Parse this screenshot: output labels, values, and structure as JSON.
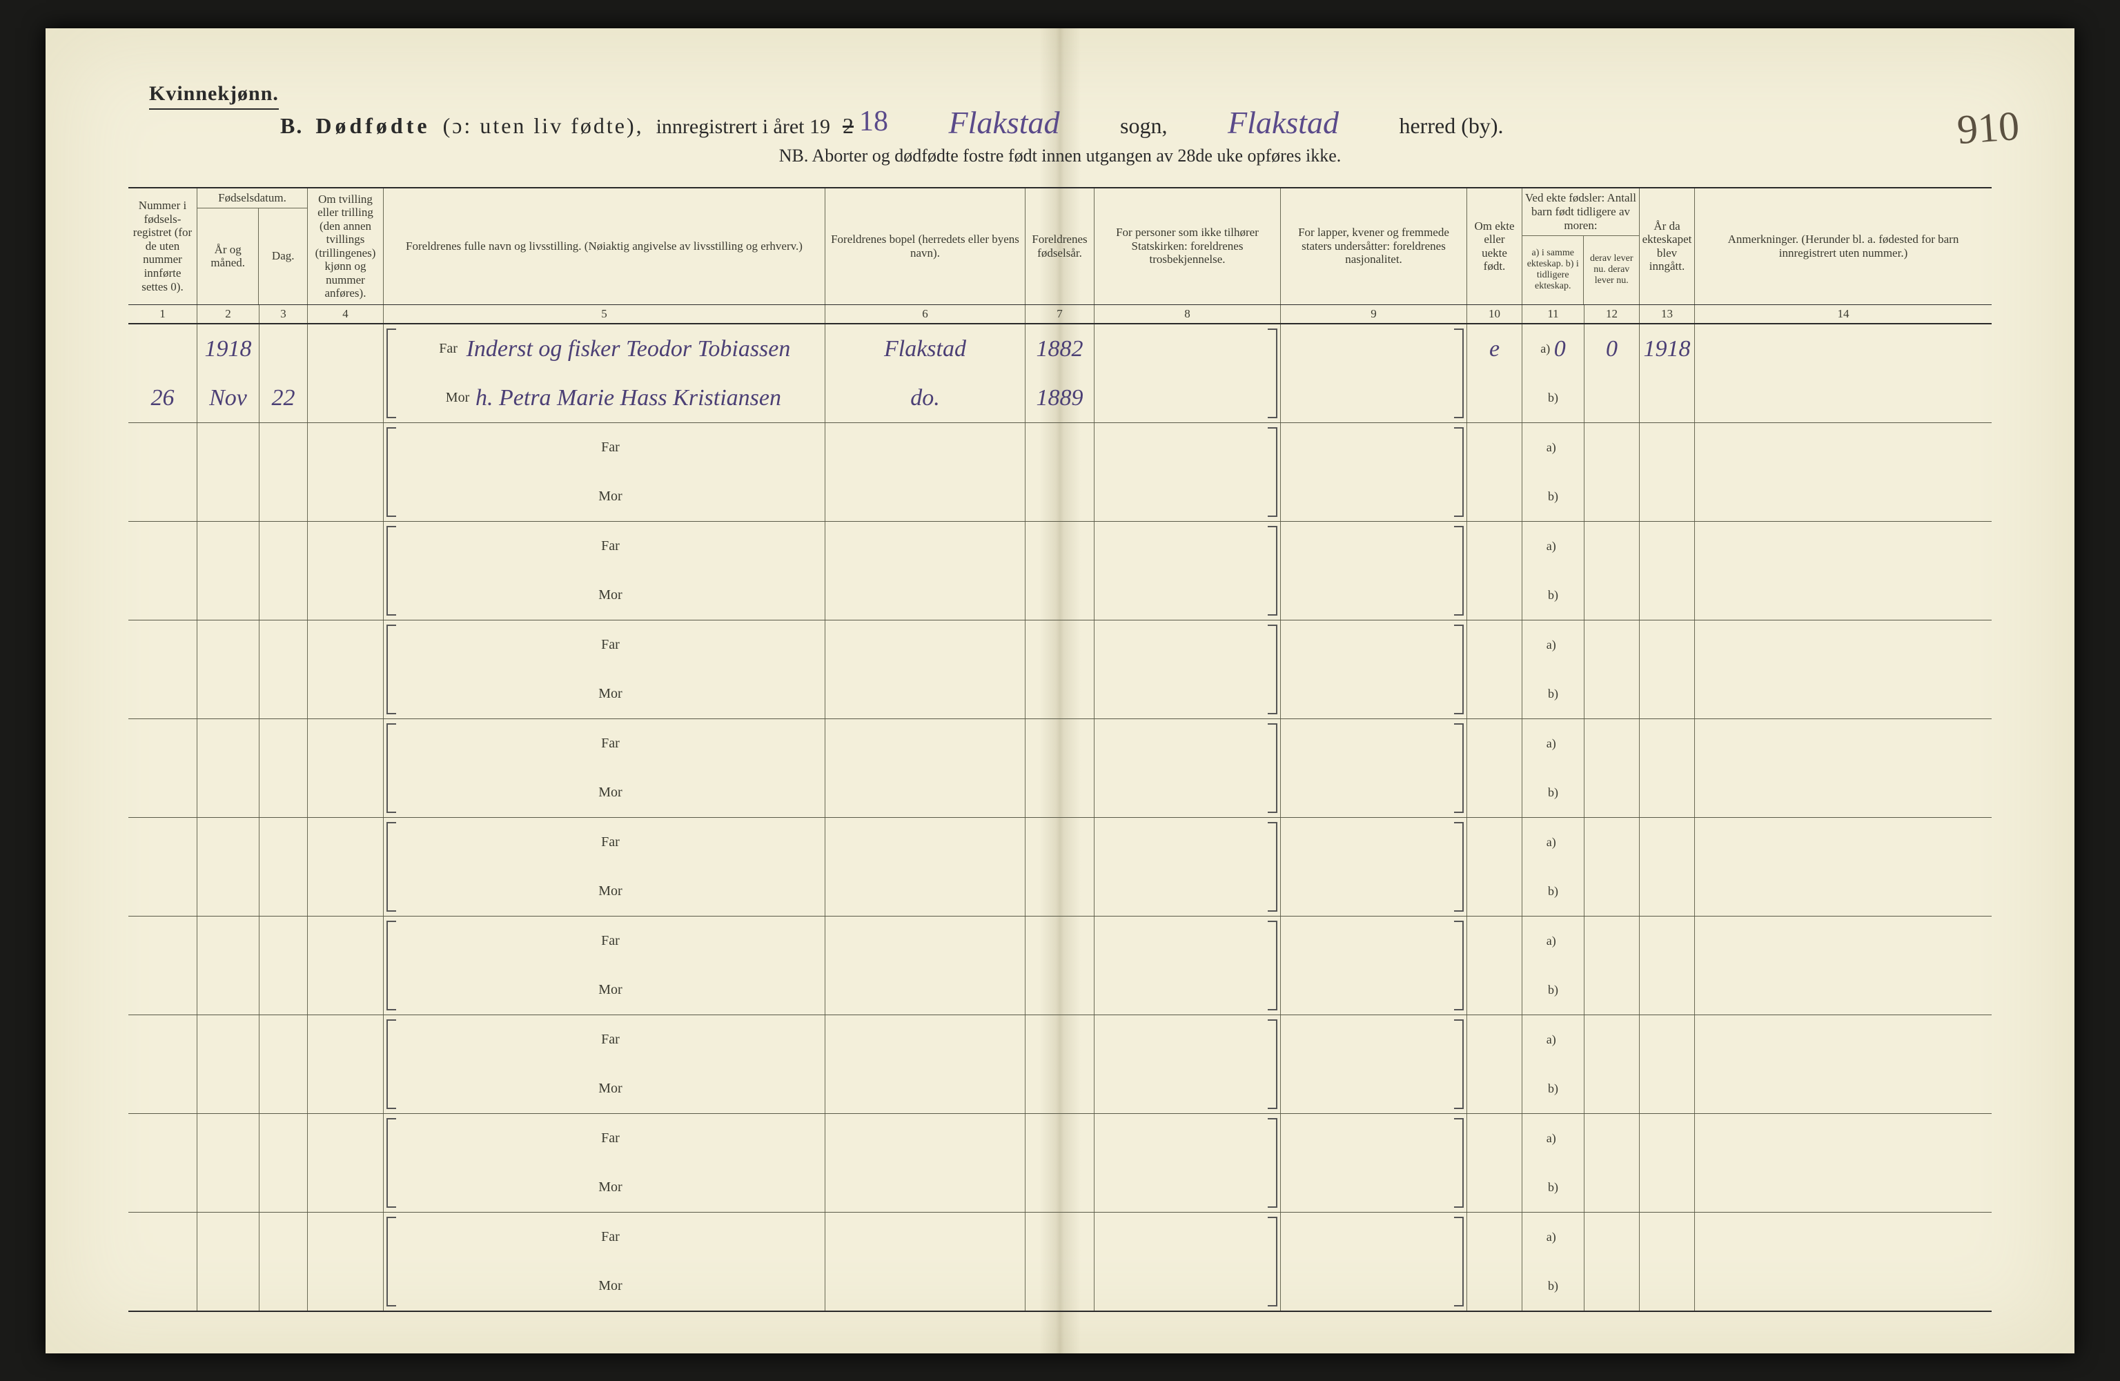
{
  "page_background": "#f3efda",
  "ink_color": "#2a2a2a",
  "handwriting_color": "#5a4a8a",
  "gender_label": "Kvinnekjønn.",
  "page_number_handwritten": "910",
  "title": {
    "section_letter": "B.",
    "main_bold": "Dødfødte",
    "paren": "(ɔ: uten liv fødte),",
    "registered": "innregistrert i året 19",
    "year_prefix_printed": "2",
    "year_struck_correction": "18",
    "sogn_label": "sogn,",
    "herred_label": "herred (by).",
    "sogn_value": "Flakstad",
    "herred_value": "Flakstad"
  },
  "subtitle": "NB. Aborter og dødfødte fostre født innen utgangen av 28de uke opføres ikke.",
  "columns": {
    "c1": "Nummer i fødsels-registret (for de uten nummer innførte settes 0).",
    "c23_top": "Fødselsdatum.",
    "c2": "År og måned.",
    "c3": "Dag.",
    "c4": "Om tvilling eller trilling (den annen tvillings (trillingenes) kjønn og nummer anføres).",
    "c5": "Foreldrenes fulle navn og livsstilling. (Nøiaktig angivelse av livsstilling og erhverv.)",
    "c6": "Foreldrenes bopel (herredets eller byens navn).",
    "c7": "Foreldrenes fødselsår.",
    "c8": "For personer som ikke tilhører Statskirken: foreldrenes trosbekjennelse.",
    "c9": "For lapper, kvener og fremmede staters undersåtter: foreldrenes nasjonalitet.",
    "c10": "Om ekte eller uekte født.",
    "c1112_top": "Ved ekte fødsler: Antall barn født tidligere av moren:",
    "c11": "a) i samme ekteskap. b) i tidligere ekteskap.",
    "c12": "derav lever nu. derav lever nu.",
    "c13": "År da ekteskapet blev inngått.",
    "c14": "Anmerkninger. (Herunder bl. a. fødested for barn innregistrert uten nummer.)"
  },
  "column_numbers": [
    "1",
    "2",
    "3",
    "4",
    "5",
    "6",
    "7",
    "8",
    "9",
    "10",
    "11",
    "12",
    "13",
    "14"
  ],
  "far_label": "Far",
  "mor_label": "Mor",
  "ab_labels": {
    "a": "a)",
    "b": "b)"
  },
  "entries": [
    {
      "c1": "26",
      "year": "1918",
      "month": "Nov",
      "day": "22",
      "far_c5": "Inderst og fisker Teodor Tobiassen",
      "mor_c5": "h. Petra Marie Hass Kristiansen",
      "far_c6": "Flakstad",
      "mor_c6": "do.",
      "far_c7": "1882",
      "mor_c7": "1889",
      "c10": "e",
      "c11a": "0",
      "c12a": "0",
      "c13": "1918"
    },
    {},
    {},
    {},
    {},
    {},
    {},
    {},
    {},
    {}
  ],
  "row_count": 10
}
